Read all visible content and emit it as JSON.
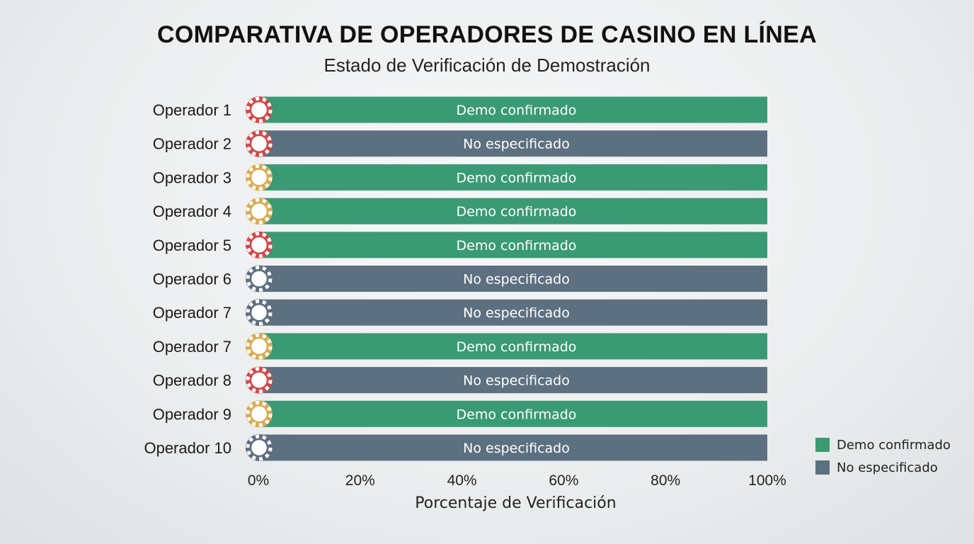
{
  "chart_data": {
    "type": "bar",
    "orientation": "horizontal",
    "title": "COMPARATIVA DE OPERADORES DE CASINO EN LÍNEA",
    "subtitle": "Estado de Verificación de Demostración",
    "xlabel": "Porcentaje de Verificación",
    "xlim": [
      0,
      100
    ],
    "x_ticks": [
      "0%",
      "20%",
      "40%",
      "60%",
      "80%",
      "100%"
    ],
    "x_tick_values": [
      0,
      20,
      40,
      60,
      80,
      100
    ],
    "categories": [
      "Operador 1",
      "Operador 2",
      "Operador 3",
      "Operador 4",
      "Operador 5",
      "Operador 6",
      "Operador 7",
      "Operador 7",
      "Operador 8",
      "Operador 9",
      "Operador 10"
    ],
    "values": [
      100,
      100,
      100,
      100,
      100,
      100,
      100,
      100,
      100,
      100,
      100
    ],
    "status": [
      "Demo confirmado",
      "No especificado",
      "Demo confirmado",
      "Demo confirmado",
      "Demo confirmado",
      "No especificado",
      "No especificado",
      "Demo confirmado",
      "No especificado",
      "Demo confirmado",
      "No especificado"
    ],
    "chip_colors": [
      "#d04a4a",
      "#d04a4a",
      "#d9ab52",
      "#d9ab52",
      "#d04a4a",
      "#5d6f80",
      "#5d6f80",
      "#d9ab52",
      "#d04a4a",
      "#d9ab52",
      "#5d6f80"
    ],
    "series_colors": {
      "Demo confirmado": "#3a9a74",
      "No especificado": "#5d7080"
    },
    "legend": {
      "position": "bottom-right",
      "items": [
        {
          "label": "Demo confirmado",
          "color": "#3a9a74"
        },
        {
          "label": "No especificado",
          "color": "#5d7080"
        }
      ]
    },
    "grid": false
  }
}
